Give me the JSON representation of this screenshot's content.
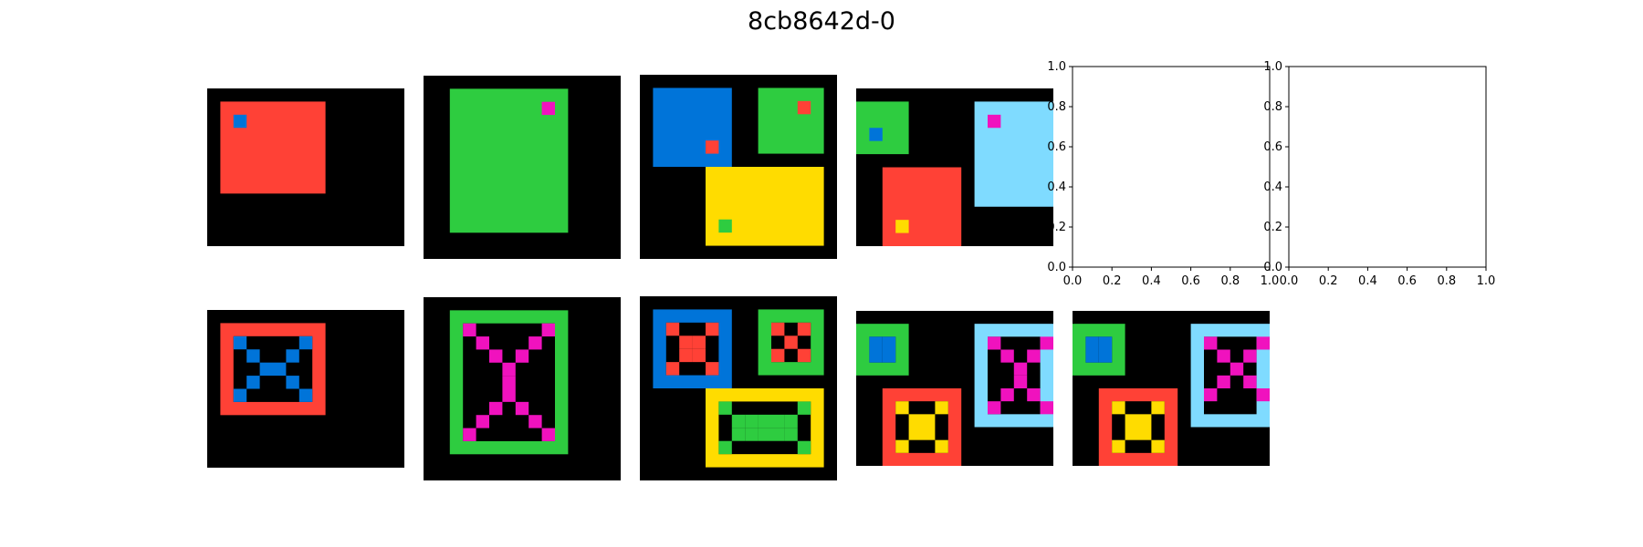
{
  "title": "8cb8642d-0",
  "colors": {
    "0": "#000000",
    "1": "#0074D9",
    "2": "#FF4136",
    "3": "#2ECC40",
    "4": "#FFDC00",
    "6": "#F012BE",
    "8": "#7FDBFF"
  },
  "empty_axes": {
    "x_ticks": [
      "0.0",
      "0.2",
      "0.4",
      "0.6",
      "0.8",
      "1.0"
    ],
    "y_ticks": [
      "0.0",
      "0.2",
      "0.4",
      "0.6",
      "0.8",
      "1.0"
    ]
  },
  "panels": [
    {
      "id": "train-1-input",
      "grid": {
        "rows": 12,
        "cols": 15,
        "bg": 0,
        "rects": [
          [
            1,
            1,
            7,
            8,
            2
          ],
          [
            2,
            2,
            1,
            1,
            1
          ]
        ]
      }
    },
    {
      "id": "train-2-input",
      "grid": {
        "rows": 14,
        "cols": 15,
        "bg": 0,
        "rects": [
          [
            1,
            2,
            11,
            9,
            3
          ],
          [
            2,
            9,
            1,
            1,
            6
          ]
        ]
      }
    },
    {
      "id": "train-3-input",
      "grid": {
        "rows": 14,
        "cols": 15,
        "bg": 0,
        "rects": [
          [
            1,
            1,
            6,
            6,
            1
          ],
          [
            1,
            9,
            5,
            5,
            3
          ],
          [
            7,
            5,
            6,
            9,
            4
          ],
          [
            5,
            5,
            1,
            1,
            2
          ],
          [
            2,
            12,
            1,
            1,
            2
          ],
          [
            11,
            6,
            1,
            1,
            3
          ]
        ]
      }
    },
    {
      "id": "test-input",
      "grid": {
        "rows": 12,
        "cols": 15,
        "bg": 0,
        "rects": [
          [
            1,
            0,
            4,
            4,
            3
          ],
          [
            6,
            2,
            6,
            6,
            2
          ],
          [
            1,
            9,
            8,
            6,
            8
          ],
          [
            3,
            1,
            1,
            1,
            1
          ],
          [
            10,
            3,
            1,
            1,
            4
          ],
          [
            2,
            10,
            1,
            1,
            6
          ]
        ]
      }
    },
    {
      "id": "empty-axes-1",
      "empty": true
    },
    {
      "id": "empty-axes-2",
      "empty": true
    },
    {
      "id": "train-1-output",
      "grid": {
        "rows": 12,
        "cols": 15,
        "bg": 0,
        "rects": [
          [
            1,
            1,
            7,
            8,
            2
          ],
          [
            2,
            2,
            5,
            6,
            0
          ]
        ],
        "cells": [
          [
            2,
            2,
            1
          ],
          [
            2,
            7,
            1
          ],
          [
            3,
            3,
            1
          ],
          [
            3,
            6,
            1
          ],
          [
            4,
            4,
            1
          ],
          [
            4,
            5,
            1
          ],
          [
            5,
            3,
            1
          ],
          [
            5,
            6,
            1
          ],
          [
            6,
            2,
            1
          ],
          [
            6,
            7,
            1
          ]
        ]
      }
    },
    {
      "id": "train-2-output",
      "grid": {
        "rows": 14,
        "cols": 15,
        "bg": 0,
        "rects": [
          [
            1,
            2,
            11,
            9,
            3
          ],
          [
            2,
            3,
            9,
            7,
            0
          ]
        ],
        "cells": [
          [
            2,
            3,
            6
          ],
          [
            2,
            9,
            6
          ],
          [
            3,
            4,
            6
          ],
          [
            3,
            8,
            6
          ],
          [
            4,
            5,
            6
          ],
          [
            4,
            7,
            6
          ],
          [
            5,
            6,
            6
          ],
          [
            6,
            6,
            6
          ],
          [
            7,
            6,
            6
          ],
          [
            8,
            5,
            6
          ],
          [
            8,
            7,
            6
          ],
          [
            9,
            4,
            6
          ],
          [
            9,
            8,
            6
          ],
          [
            10,
            3,
            6
          ],
          [
            10,
            9,
            6
          ]
        ]
      }
    },
    {
      "id": "train-3-output",
      "grid": {
        "rows": 14,
        "cols": 15,
        "bg": 0,
        "rects": [
          [
            1,
            1,
            6,
            6,
            1
          ],
          [
            2,
            2,
            4,
            4,
            0
          ],
          [
            1,
            9,
            5,
            5,
            3
          ],
          [
            2,
            10,
            3,
            3,
            0
          ],
          [
            7,
            5,
            6,
            9,
            4
          ],
          [
            8,
            6,
            4,
            7,
            0
          ]
        ],
        "cells": [
          [
            2,
            2,
            2
          ],
          [
            2,
            5,
            2
          ],
          [
            3,
            3,
            2
          ],
          [
            3,
            4,
            2
          ],
          [
            4,
            3,
            2
          ],
          [
            4,
            4,
            2
          ],
          [
            5,
            2,
            2
          ],
          [
            5,
            5,
            2
          ],
          [
            2,
            10,
            2
          ],
          [
            2,
            12,
            2
          ],
          [
            3,
            11,
            2
          ],
          [
            4,
            10,
            2
          ],
          [
            4,
            12,
            2
          ],
          [
            8,
            6,
            3
          ],
          [
            8,
            12,
            3
          ],
          [
            9,
            7,
            3
          ],
          [
            9,
            11,
            3
          ],
          [
            10,
            7,
            3
          ],
          [
            10,
            11,
            3
          ],
          [
            11,
            6,
            3
          ],
          [
            11,
            12,
            3
          ],
          [
            9,
            8,
            3
          ],
          [
            9,
            9,
            3
          ],
          [
            9,
            10,
            3
          ],
          [
            10,
            8,
            3
          ],
          [
            10,
            9,
            3
          ],
          [
            10,
            10,
            3
          ]
        ]
      }
    },
    {
      "id": "candidate-1",
      "grid": {
        "rows": 12,
        "cols": 15,
        "bg": 0,
        "rects": [
          [
            1,
            0,
            4,
            4,
            3
          ],
          [
            2,
            1,
            2,
            2,
            0
          ],
          [
            6,
            2,
            6,
            6,
            2
          ],
          [
            7,
            3,
            4,
            4,
            0
          ],
          [
            1,
            9,
            8,
            6,
            8
          ],
          [
            2,
            10,
            6,
            4,
            0
          ]
        ],
        "cells": [
          [
            2,
            1,
            1
          ],
          [
            2,
            2,
            1
          ],
          [
            3,
            1,
            1
          ],
          [
            3,
            2,
            1
          ],
          [
            7,
            3,
            4
          ],
          [
            7,
            6,
            4
          ],
          [
            8,
            4,
            4
          ],
          [
            8,
            5,
            4
          ],
          [
            9,
            4,
            4
          ],
          [
            9,
            5,
            4
          ],
          [
            10,
            3,
            4
          ],
          [
            10,
            6,
            4
          ],
          [
            2,
            10,
            6
          ],
          [
            2,
            14,
            6
          ],
          [
            3,
            11,
            6
          ],
          [
            3,
            13,
            6
          ],
          [
            4,
            12,
            6
          ],
          [
            5,
            12,
            6
          ],
          [
            6,
            11,
            6
          ],
          [
            6,
            13,
            6
          ],
          [
            7,
            10,
            6
          ],
          [
            7,
            14,
            6
          ]
        ]
      }
    },
    {
      "id": "candidate-2",
      "grid": {
        "rows": 12,
        "cols": 15,
        "bg": 0,
        "rects": [
          [
            1,
            0,
            4,
            4,
            3
          ],
          [
            2,
            1,
            2,
            2,
            0
          ],
          [
            6,
            2,
            6,
            6,
            2
          ],
          [
            7,
            3,
            4,
            4,
            0
          ],
          [
            1,
            9,
            8,
            6,
            8
          ],
          [
            2,
            10,
            6,
            4,
            0
          ]
        ],
        "cells": [
          [
            2,
            1,
            1
          ],
          [
            2,
            2,
            1
          ],
          [
            3,
            1,
            1
          ],
          [
            3,
            2,
            1
          ],
          [
            7,
            3,
            4
          ],
          [
            7,
            6,
            4
          ],
          [
            8,
            4,
            4
          ],
          [
            8,
            5,
            4
          ],
          [
            9,
            4,
            4
          ],
          [
            9,
            5,
            4
          ],
          [
            10,
            3,
            4
          ],
          [
            10,
            6,
            4
          ],
          [
            2,
            10,
            6
          ],
          [
            3,
            11,
            6
          ],
          [
            4,
            12,
            6
          ],
          [
            5,
            13,
            6
          ],
          [
            6,
            14,
            6
          ],
          [
            2,
            14,
            6
          ],
          [
            3,
            13,
            6
          ],
          [
            5,
            11,
            6
          ],
          [
            6,
            10,
            6
          ]
        ]
      }
    }
  ]
}
